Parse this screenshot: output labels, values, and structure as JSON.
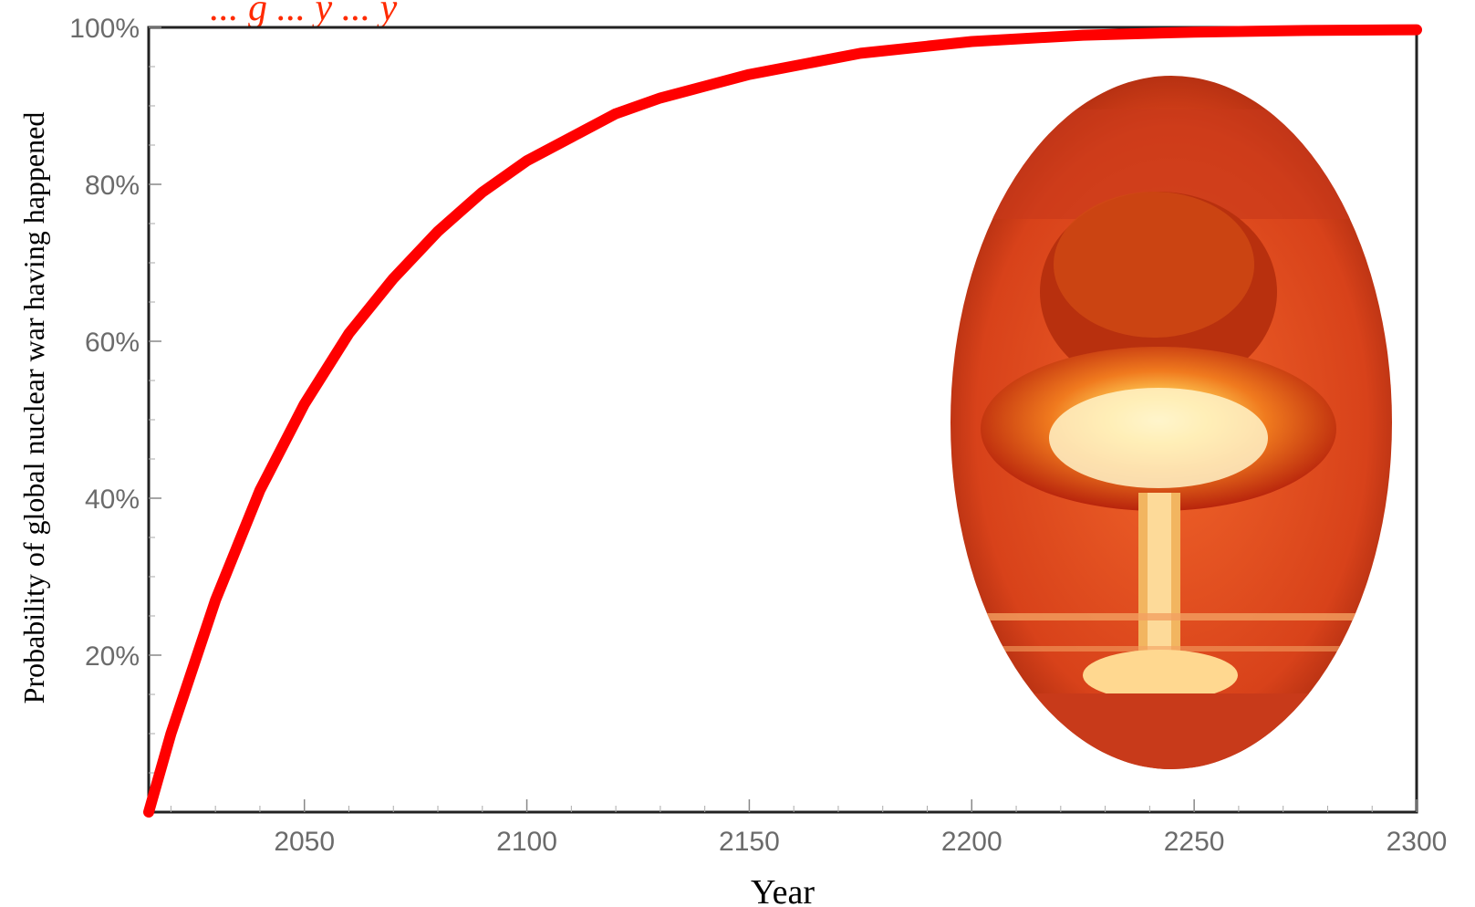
{
  "colors": {
    "curve": "#ff0000",
    "frame": "#222222",
    "tick_label": "#6b6b6b",
    "title": "#ff2a00"
  },
  "chart_data": {
    "type": "line",
    "title": "... g ... y ... y",
    "xlabel": "Year",
    "ylabel": "Probability of global nuclear war having happened",
    "xlim": [
      2015,
      2300
    ],
    "ylim": [
      0,
      100
    ],
    "x_ticks": [
      "2050",
      "2100",
      "2150",
      "2200",
      "2250",
      "2300"
    ],
    "y_ticks": [
      "20%",
      "40%",
      "60%",
      "80%",
      "100%"
    ],
    "grid": false,
    "series": [
      {
        "x": [
          2015,
          2020,
          2030,
          2040,
          2050,
          2060,
          2070,
          2080,
          2090,
          2100,
          2110,
          2120,
          2130,
          2140,
          2150,
          2175,
          2200,
          2225,
          2250,
          2275,
          2300
        ],
        "y": [
          0,
          10,
          27,
          41,
          52,
          61,
          68,
          74,
          79,
          83,
          86,
          89,
          91,
          92.5,
          94,
          96.7,
          98.2,
          99,
          99.4,
          99.6,
          99.7
        ]
      }
    ],
    "inset_image": "nuclear-mushroom-cloud"
  }
}
